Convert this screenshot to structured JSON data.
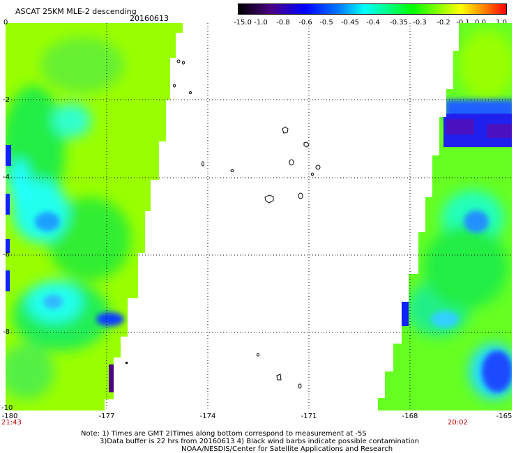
{
  "header": {
    "title": "ASCAT 25KM MLE-2 descending",
    "date": "20160613"
  },
  "colorbar": {
    "labels": [
      "-15.0",
      "-1.0",
      "-0.8",
      "-0.6",
      "-0.5",
      "-0.45",
      "-0.4",
      "-0.35",
      "-0.3",
      "-0.2",
      "-0.1",
      "0.0",
      "1.0"
    ],
    "colors": [
      "#000000",
      "#4b0082",
      "#0000ff",
      "#0080ff",
      "#00ffff",
      "#00ff80",
      "#00ff00",
      "#80ff00",
      "#ffff00",
      "#ff8000",
      "#ff0000"
    ]
  },
  "axes": {
    "y_labels": [
      "0",
      "-2",
      "-4",
      "-6",
      "-8",
      "-10"
    ],
    "x_labels": [
      "-180",
      "-177",
      "-174",
      "-171",
      "-168",
      "-165"
    ]
  },
  "times": {
    "left": "21:43",
    "right": "20:02"
  },
  "notes": {
    "line1": "Note: 1) Times are GMT 2)Times along bottom correspond to measurement at -5S",
    "line2": "3)Data buffer is 22 hrs from 20160613 4) Black wind barbs indicate possible contamination",
    "line3": "NOAA/NESDIS/Center for Satellite Applications and Research"
  }
}
